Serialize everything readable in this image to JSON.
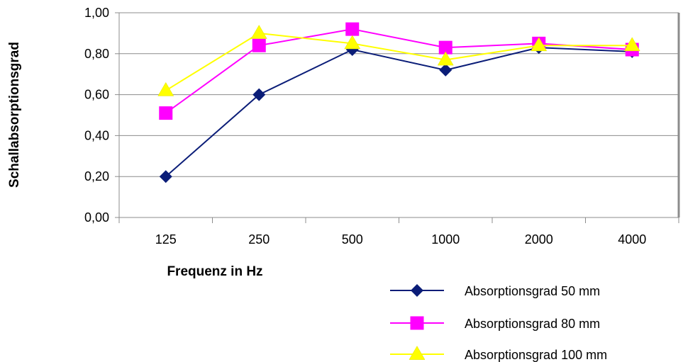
{
  "chart_data": {
    "type": "line",
    "categories": [
      "125",
      "250",
      "500",
      "1000",
      "2000",
      "4000"
    ],
    "xlabel": "Frequenz in Hz",
    "ylabel": "Schallabsorptionsgrad",
    "ylim": [
      0,
      1
    ],
    "yticks": [
      "0,00",
      "0,20",
      "0,40",
      "0,60",
      "0,80",
      "1,00"
    ],
    "grid": true,
    "legend_position": "bottom-right",
    "series": [
      {
        "name": "Absorptionsgrad 50 mm",
        "values": [
          0.2,
          0.6,
          0.82,
          0.72,
          0.83,
          0.81
        ],
        "color": "#0b1d78",
        "marker": "diamond"
      },
      {
        "name": "Absorptionsgrad 80 mm",
        "values": [
          0.51,
          0.84,
          0.92,
          0.83,
          0.85,
          0.82
        ],
        "color": "#ff00ff",
        "marker": "square"
      },
      {
        "name": "Absorptionsgrad 100 mm",
        "values": [
          0.62,
          0.9,
          0.85,
          0.77,
          0.84,
          0.84
        ],
        "color": "#ffff00",
        "marker": "triangle"
      }
    ]
  }
}
